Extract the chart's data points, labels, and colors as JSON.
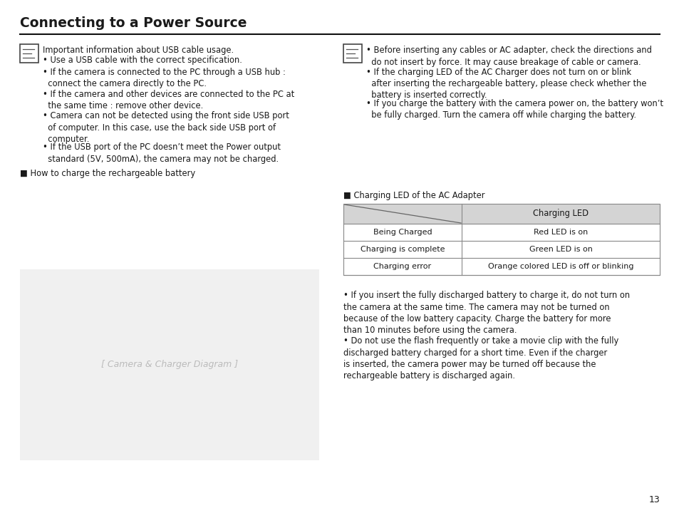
{
  "title": "Connecting to a Power Source",
  "bg_color": "#ffffff",
  "text_color": "#1a1a1a",
  "page_number": "13",
  "left_note_header": "Important information about USB cable usage.",
  "left_bullets": [
    "Use a USB cable with the correct specification.",
    "If the camera is connected to the PC through a USB hub :\n  connect the camera directly to the PC.",
    "If the camera and other devices are connected to the PC at\n  the same time : remove other device.",
    "Camera can not be detected using the front side USB port\n  of computer. In this case, use the back side USB port of\n  computer.",
    "If the USB port of the PC doesn’t meet the Power output\n  standard (5V, 500mA), the camera may not be charged."
  ],
  "right_bullets_top": [
    "Before inserting any cables or AC adapter, check the directions and\n  do not insert by force. It may cause breakage of cable or camera.",
    "If the charging LED of the AC Charger does not turn on or blink\n  after inserting the rechargeable battery, please check whether the\n  battery is inserted correctly.",
    "If you charge the battery with the camera power on, the battery won’t\n  be fully charged. Turn the camera off while charging the battery."
  ],
  "section_charging_label": "■ Charging LED of the AC Adapter",
  "table_header_right": "Charging LED",
  "table_rows": [
    [
      "Being Charged",
      "Red LED is on"
    ],
    [
      "Charging is complete",
      "Green LED is on"
    ],
    [
      "Charging error",
      "Orange colored LED is off or blinking"
    ]
  ],
  "section_how_label": "■ How to charge the rechargeable battery",
  "bottom_right_bullet1": "If you insert the fully discharged battery to charge it, do not turn on\nthe camera at the same time. The camera may not be turned on\nbecause of the low battery capacity. Charge the battery for more\nthan 10 minutes before using the camera.",
  "bottom_right_bullet2": "Do not use the flash frequently or take a movie clip with the fully\ndischarged battery charged for a short time. Even if the charger\nis inserted, the camera power may be turned off because the\nrechargeable battery is discharged again."
}
